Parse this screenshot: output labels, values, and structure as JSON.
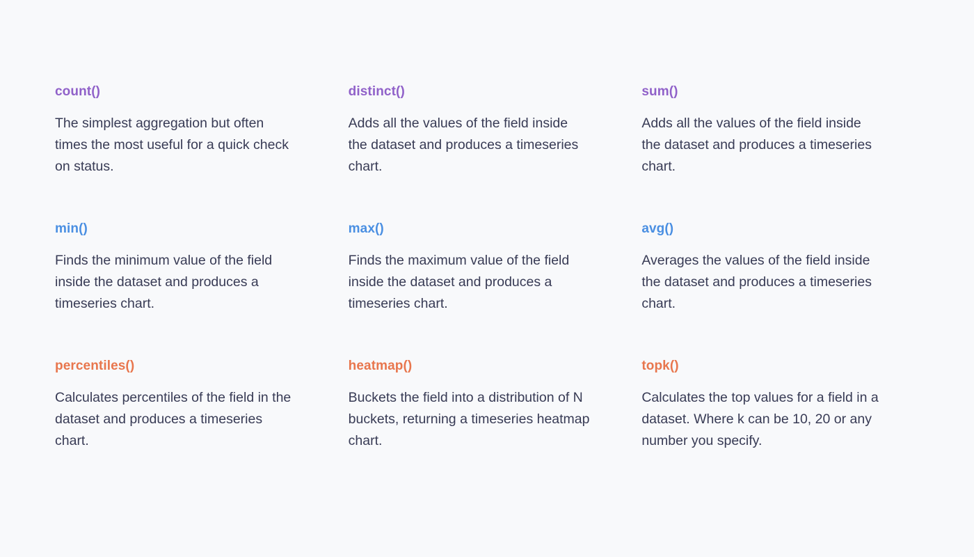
{
  "page": {
    "background_color": "#f8f9fb",
    "body_text_color": "#383b55"
  },
  "group_colors": {
    "count_group": "#9061c9",
    "minmax_group": "#4a8fe2",
    "advanced_group": "#e8764d"
  },
  "cards": [
    {
      "title": "count()",
      "color": "#9061c9",
      "description": "The simplest aggregation but often\ntimes the most useful for a quick check\non status."
    },
    {
      "title": "distinct()",
      "color": "#9061c9",
      "description": "Adds all the values of the field inside\nthe dataset and produces a timeseries\nchart."
    },
    {
      "title": "sum()",
      "color": "#9061c9",
      "description": "Adds all the values of the field inside\nthe dataset and produces a timeseries\nchart."
    },
    {
      "title": "min()",
      "color": "#4a8fe2",
      "description": "Finds the minimum value of the field\ninside the dataset and produces a\ntimeseries chart."
    },
    {
      "title": "max()",
      "color": "#4a8fe2",
      "description": "Finds the maximum value of the field\ninside the dataset and produces a\ntimeseries chart."
    },
    {
      "title": "avg()",
      "color": "#4a8fe2",
      "description": "Averages the values of the field inside\nthe dataset and produces a timeseries\nchart."
    },
    {
      "title": "percentiles()",
      "color": "#e8764d",
      "description": "Calculates percentiles of the field in the\ndataset and produces a timeseries\nchart."
    },
    {
      "title": "heatmap()",
      "color": "#e8764d",
      "description": "Buckets the field into a distribution of N\nbuckets, returning a timeseries heatmap\nchart."
    },
    {
      "title": "topk()",
      "color": "#e8764d",
      "description": "Calculates the top values for a field in a\ndataset. Where k can be 10, 20 or any\nnumber you specify."
    }
  ]
}
